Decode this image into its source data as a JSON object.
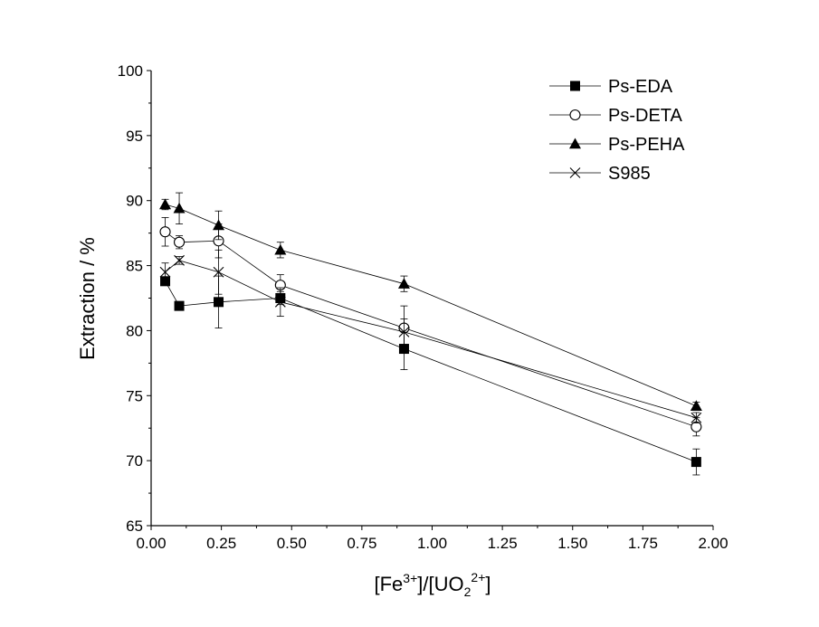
{
  "chart_data": {
    "type": "line",
    "xlabel_parts": [
      "[Fe",
      "3+",
      "]/[UO",
      "2",
      "2+",
      "]"
    ],
    "ylabel": "Extraction / %",
    "xlim": [
      0.0,
      2.0
    ],
    "ylim": [
      65,
      100
    ],
    "xticks": [
      "0.00",
      "0.25",
      "0.50",
      "0.75",
      "1.00",
      "1.25",
      "1.50",
      "1.75",
      "2.00"
    ],
    "yticks": [
      "65",
      "70",
      "75",
      "80",
      "85",
      "90",
      "95",
      "100"
    ],
    "grid": false,
    "legend_position": "top-right",
    "series": [
      {
        "name": "Ps-EDA",
        "marker": "filled-square",
        "x": [
          0.05,
          0.1,
          0.24,
          0.46,
          0.9,
          1.94
        ],
        "y": [
          83.8,
          81.9,
          82.2,
          82.5,
          78.6,
          69.9
        ],
        "err": [
          0.3,
          0.3,
          2.0,
          0.5,
          1.6,
          1.0
        ]
      },
      {
        "name": "Ps-DETA",
        "marker": "open-circle",
        "x": [
          0.05,
          0.1,
          0.24,
          0.46,
          0.9,
          1.94
        ],
        "y": [
          87.6,
          86.8,
          86.9,
          83.5,
          80.2,
          72.6
        ],
        "err": [
          1.1,
          0.5,
          1.3,
          0.8,
          1.7,
          0.7
        ]
      },
      {
        "name": "Ps-PEHA",
        "marker": "filled-triangle",
        "x": [
          0.05,
          0.1,
          0.24,
          0.46,
          0.9,
          1.94
        ],
        "y": [
          89.7,
          89.4,
          88.1,
          86.2,
          83.6,
          74.2
        ],
        "err": [
          0.4,
          1.2,
          1.1,
          0.6,
          0.6,
          0.3
        ]
      },
      {
        "name": "S985",
        "marker": "x-cross",
        "x": [
          0.05,
          0.1,
          0.24,
          0.46,
          0.9,
          1.94
        ],
        "y": [
          84.5,
          85.4,
          84.5,
          82.2,
          79.9,
          73.3
        ],
        "err": [
          0.7,
          0.3,
          1.7,
          1.1,
          1.0,
          0.4
        ]
      }
    ]
  }
}
